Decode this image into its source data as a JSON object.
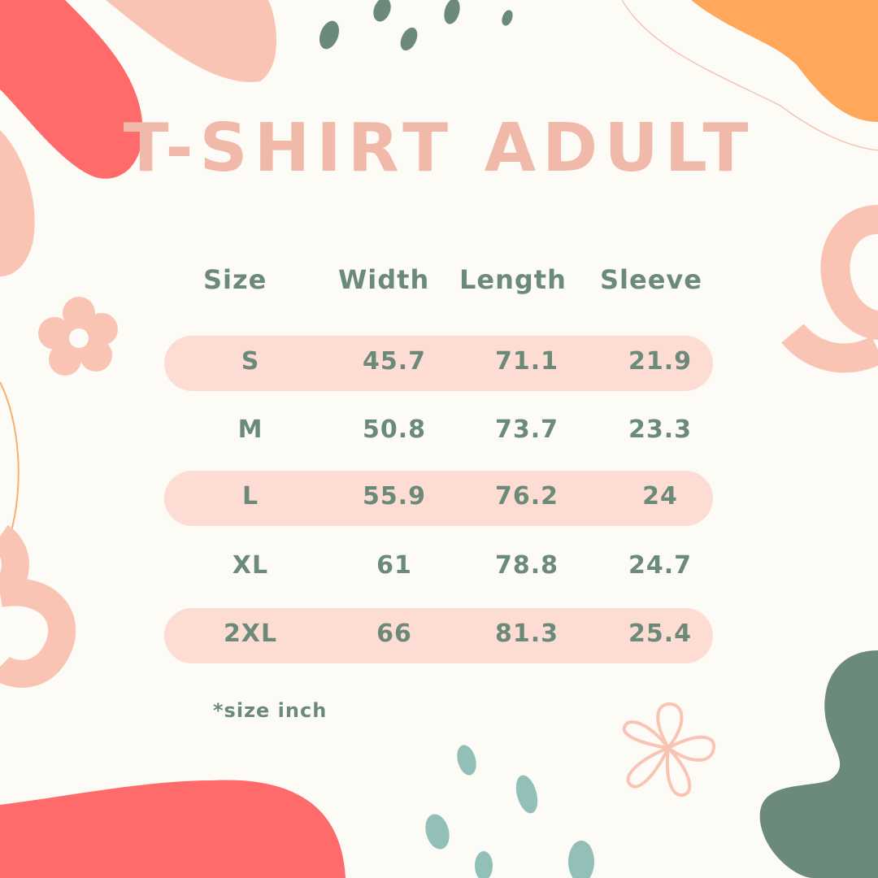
{
  "title": "T-SHIRT ADULT",
  "headers": [
    "Size",
    "Width",
    "Length",
    "Sleeve"
  ],
  "rows": [
    [
      "S",
      "45.7",
      "71.1",
      "21.9"
    ],
    [
      "M",
      "50.8",
      "73.7",
      "23.3"
    ],
    [
      "L",
      "55.9",
      "76.2",
      "24"
    ],
    [
      "XL",
      "61",
      "78.8",
      "24.7"
    ],
    [
      "2XL",
      "66",
      "81.3",
      "25.4"
    ]
  ],
  "note": "*size inch",
  "colors": {
    "background": "#fdfbf6",
    "title": "#f1b9a9",
    "text": "#6b8a7a",
    "row_band": "#fddcd4",
    "coral": "#ff6b6b",
    "peach": "#f9c4b4",
    "orange": "#ffa85c",
    "dark_green": "#6b8a7a",
    "teal": "#93bfb9"
  }
}
